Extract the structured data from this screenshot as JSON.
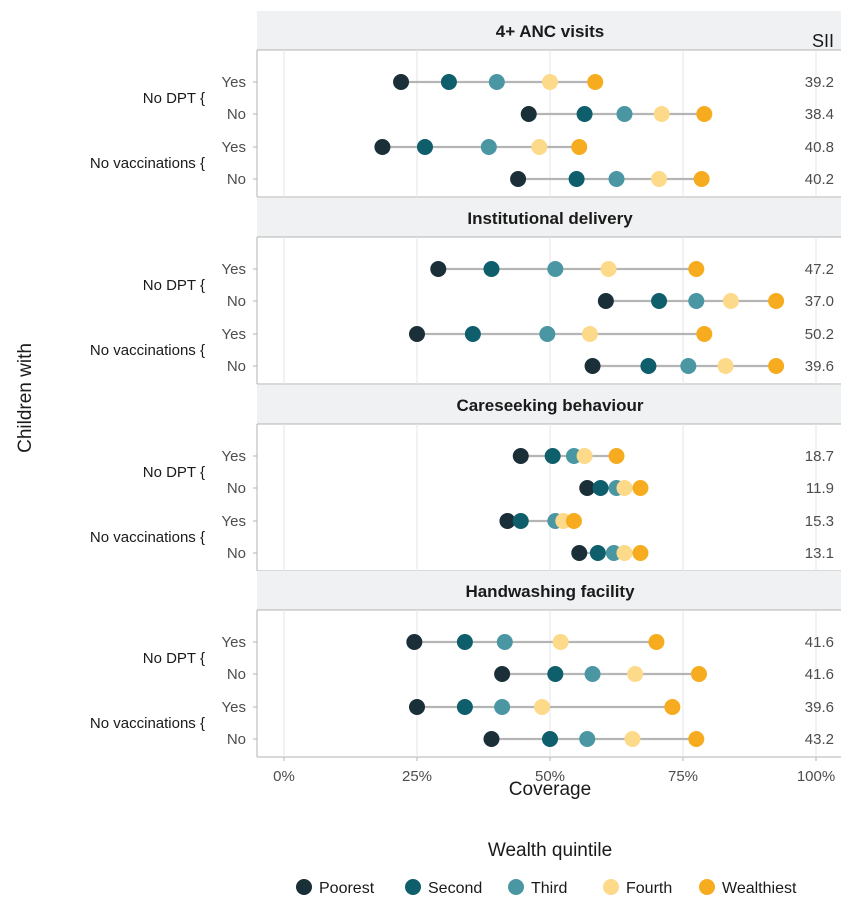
{
  "chart_data": {
    "type": "dot-range",
    "facets": [
      {
        "title": "4+ ANC visits",
        "rows": [
          {
            "group": "No DPT {",
            "label": "Yes",
            "values": [
              22,
              31,
              40,
              50,
              58.5
            ],
            "sii": "39.2"
          },
          {
            "group": "No DPT {",
            "label": "No",
            "values": [
              46,
              56.5,
              64,
              71,
              79
            ],
            "sii": "38.4"
          },
          {
            "group": "No vaccinations {",
            "label": "Yes",
            "values": [
              18.5,
              26.5,
              38.5,
              48,
              55.5
            ],
            "sii": "40.8"
          },
          {
            "group": "No vaccinations {",
            "label": "No",
            "values": [
              44,
              55,
              62.5,
              70.5,
              78.5
            ],
            "sii": "40.2"
          }
        ]
      },
      {
        "title": "Institutional delivery",
        "rows": [
          {
            "group": "No DPT {",
            "label": "Yes",
            "values": [
              29,
              39,
              51,
              61,
              77.5
            ],
            "sii": "47.2"
          },
          {
            "group": "No DPT {",
            "label": "No",
            "values": [
              60.5,
              70.5,
              77.5,
              84,
              92.5
            ],
            "sii": "37.0"
          },
          {
            "group": "No vaccinations {",
            "label": "Yes",
            "values": [
              25,
              35.5,
              49.5,
              57.5,
              79
            ],
            "sii": "50.2"
          },
          {
            "group": "No vaccinations {",
            "label": "No",
            "values": [
              58,
              68.5,
              76,
              83,
              92.5
            ],
            "sii": "39.6"
          }
        ]
      },
      {
        "title": "Careseeking behaviour",
        "rows": [
          {
            "group": "No DPT {",
            "label": "Yes",
            "values": [
              44.5,
              50.5,
              54.5,
              56.5,
              62.5
            ],
            "sii": "18.7"
          },
          {
            "group": "No DPT {",
            "label": "No",
            "values": [
              57,
              59.5,
              62.5,
              64,
              67
            ],
            "sii": "11.9"
          },
          {
            "group": "No vaccinations {",
            "label": "Yes",
            "values": [
              42,
              44.5,
              51,
              52.5,
              54.5
            ],
            "sii": "15.3"
          },
          {
            "group": "No vaccinations {",
            "label": "No",
            "values": [
              55.5,
              59,
              62,
              64,
              67
            ],
            "sii": "13.1"
          }
        ]
      },
      {
        "title": "Handwashing facility",
        "rows": [
          {
            "group": "No DPT {",
            "label": "Yes",
            "values": [
              24.5,
              34,
              41.5,
              52,
              70
            ],
            "sii": "41.6"
          },
          {
            "group": "No DPT {",
            "label": "No",
            "values": [
              41,
              51,
              58,
              66,
              78
            ],
            "sii": "41.6"
          },
          {
            "group": "No vaccinations {",
            "label": "Yes",
            "values": [
              25,
              34,
              41,
              48.5,
              73
            ],
            "sii": "39.6"
          },
          {
            "group": "No vaccinations {",
            "label": "No",
            "values": [
              39,
              50,
              57,
              65.5,
              77.5
            ],
            "sii": "43.2"
          }
        ]
      }
    ],
    "quintiles": [
      "Poorest",
      "Second",
      "Third",
      "Fourth",
      "Wealthiest"
    ],
    "colors": [
      "#1a2f38",
      "#0e5e6b",
      "#4a97a3",
      "#fdd98a",
      "#f6ac1e"
    ],
    "xlim": [
      0,
      100
    ],
    "xticks": [
      0,
      25,
      50,
      75,
      100
    ],
    "xtick_labels": [
      "0%",
      "25%",
      "50%",
      "75%",
      "100%"
    ],
    "xlabel": "Coverage",
    "ylabel": "Children with",
    "sii_header": "SII",
    "legend_title": "Wealth quintile",
    "legend_position": "bottom",
    "grid": true
  }
}
